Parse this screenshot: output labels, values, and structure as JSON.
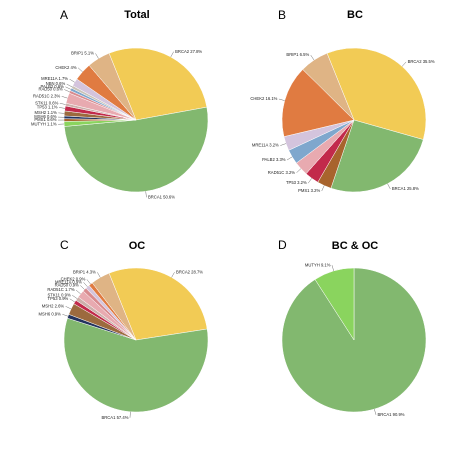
{
  "colors": {
    "BRCA1": "#82b86f",
    "BRCA2": "#f2cb55",
    "PALB2": "#7fa7cd",
    "CHEK2": "#e07b41",
    "RAD51C": "#e8aab0",
    "RAD50": "#d98b8f",
    "BRIP1": "#dfb485",
    "MRE11A": "#d4c4dd",
    "NBN": "#c9c2b8",
    "STK11": "#cdb0ab",
    "TP53": "#c22a4b",
    "MUTYH": "#8ad45e",
    "MSH2": "#9c6a3e",
    "MSH6": "#23335e",
    "PMS1": "#a8642d",
    "PMS2": "#6b9a47"
  },
  "chart_data": [
    {
      "type": "pie",
      "panel": "A",
      "title": "Total",
      "slices": [
        {
          "gene": "BRCA2",
          "label": "BRCA2 27.8%",
          "value": 27.8
        },
        {
          "gene": "BRCA1",
          "label": "BRCA1 50.6%",
          "value": 50.6
        },
        {
          "gene": "MUTYH",
          "label": "MUTYH 1.1%",
          "value": 1.1
        },
        {
          "gene": "PMS1",
          "label": "PMS1 0.6%",
          "value": 0.6
        },
        {
          "gene": "MSH6",
          "label": "MSH6 0.6%",
          "value": 0.6
        },
        {
          "gene": "MSH2",
          "label": "MSH2 1.1%",
          "value": 1.1
        },
        {
          "gene": "TP53",
          "label": "TP53 1.1%",
          "value": 1.1
        },
        {
          "gene": "STK11",
          "label": "STK11 0.6%",
          "value": 0.6
        },
        {
          "gene": "RAD51C",
          "label": "RAD51C 2.3%",
          "value": 2.3
        },
        {
          "gene": "RAD50",
          "label": "RAD50 0.6%",
          "value": 0.6
        },
        {
          "gene": "PALB2",
          "label": "PALB2 0.6%",
          "value": 0.6
        },
        {
          "gene": "NBN",
          "label": "NBN 0.6%",
          "value": 0.6
        },
        {
          "gene": "MRE11A",
          "label": "MRE11A 1.7%",
          "value": 1.7
        },
        {
          "gene": "CHEK2",
          "label": "CHEK2 4%",
          "value": 4.0
        },
        {
          "gene": "BRIP1",
          "label": "BRIP1 5.1%",
          "value": 5.1
        }
      ]
    },
    {
      "type": "pie",
      "panel": "B",
      "title": "BC",
      "slices": [
        {
          "gene": "BRCA2",
          "label": "BRCA2 35.5%",
          "value": 35.5
        },
        {
          "gene": "BRCA1",
          "label": "BRCA1 25.8%",
          "value": 25.8
        },
        {
          "gene": "PMS1",
          "label": "PMS1 3.2%",
          "value": 3.2
        },
        {
          "gene": "TP53",
          "label": "TP53 3.2%",
          "value": 3.2
        },
        {
          "gene": "RAD51C",
          "label": "RAD51C 3.2%",
          "value": 3.2
        },
        {
          "gene": "PALB2",
          "label": "PALB2 3.3%",
          "value": 3.3
        },
        {
          "gene": "MRE11A",
          "label": "MRE11A 3.2%",
          "value": 3.2
        },
        {
          "gene": "CHEK2",
          "label": "CHEK2 16.1%",
          "value": 16.1
        },
        {
          "gene": "BRIP1",
          "label": "BRIP1 6.5%",
          "value": 6.5
        }
      ]
    },
    {
      "type": "pie",
      "panel": "C",
      "title": "OC",
      "slices": [
        {
          "gene": "BRCA2",
          "label": "BRCA2 28.7%",
          "value": 28.7
        },
        {
          "gene": "BRCA1",
          "label": "BRCA1 57.4%",
          "value": 57.4
        },
        {
          "gene": "MSH6",
          "label": "MSH6 0.9%",
          "value": 0.9
        },
        {
          "gene": "MSH2",
          "label": "MSH2 2.6%",
          "value": 2.6
        },
        {
          "gene": "TP53",
          "label": "TP53 0.9%",
          "value": 0.9
        },
        {
          "gene": "STK11",
          "label": "STK11 0.9%",
          "value": 0.9
        },
        {
          "gene": "RAD51C",
          "label": "RAD51C 1.7%",
          "value": 1.7
        },
        {
          "gene": "RAD50",
          "label": "RAD50 0.9%",
          "value": 0.9
        },
        {
          "gene": "MRE11A",
          "label": "MRE11A 0.9%",
          "value": 0.9
        },
        {
          "gene": "CHEK2",
          "label": "CHEK2 0.9%",
          "value": 0.9
        },
        {
          "gene": "BRIP1",
          "label": "BRIP1 4.3%",
          "value": 4.3
        }
      ]
    },
    {
      "type": "pie",
      "panel": "D",
      "title": "BC & OC",
      "slices": [
        {
          "gene": "BRCA1",
          "label": "BRCA1 90.9%",
          "value": 90.9
        },
        {
          "gene": "MUTYH",
          "label": "MUTYH 9.1%",
          "value": 9.1
        }
      ]
    }
  ]
}
